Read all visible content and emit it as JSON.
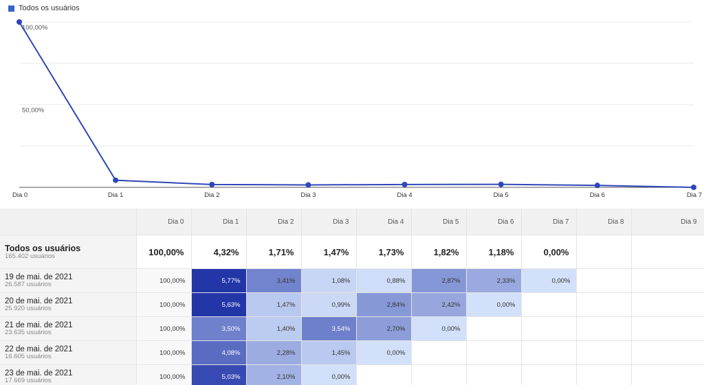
{
  "legend": {
    "label": "Todos os usuários",
    "color": "#3366cc"
  },
  "chart_data": {
    "type": "line",
    "x": [
      "Dia 0",
      "Dia 1",
      "Dia 2",
      "Dia 3",
      "Dia 4",
      "Dia 5",
      "Dia 6",
      "Dia 7"
    ],
    "series": [
      {
        "name": "Todos os usuários",
        "values": [
          100.0,
          4.32,
          1.71,
          1.47,
          1.73,
          1.82,
          1.18,
          0.0
        ]
      }
    ],
    "y_ticks": [
      "100,00%",
      "50,00%"
    ],
    "ylim": [
      0,
      100
    ],
    "grid": true,
    "line_color": "#2e46b8"
  },
  "table": {
    "columns": [
      "Dia 0",
      "Dia 1",
      "Dia 2",
      "Dia 3",
      "Dia 4",
      "Dia 5",
      "Dia 6",
      "Dia 7",
      "Dia 8",
      "Dia 9"
    ],
    "total": {
      "label": "Todos os usuários",
      "sublabel": "165.402 usuários",
      "values": [
        "100,00%",
        "4,32%",
        "1,71%",
        "1,47%",
        "1,73%",
        "1,82%",
        "1,18%",
        "0,00%",
        "",
        ""
      ]
    },
    "cohorts": [
      {
        "label": "19 de mai. de 2021",
        "sublabel": "26.587 usuários",
        "values": [
          "100,00%",
          "5,77%",
          "3,41%",
          "1,08%",
          "0,88%",
          "2,87%",
          "2,33%",
          "0,00%",
          "",
          ""
        ],
        "fractions": [
          1.0,
          0.0577,
          0.0341,
          0.0108,
          0.0088,
          0.0287,
          0.0233,
          0.0,
          null,
          null
        ]
      },
      {
        "label": "20 de mai. de 2021",
        "sublabel": "25.920 usuários",
        "values": [
          "100,00%",
          "5,63%",
          "1,47%",
          "0,99%",
          "2,84%",
          "2,42%",
          "0,00%",
          "",
          "",
          ""
        ],
        "fractions": [
          1.0,
          0.0563,
          0.0147,
          0.0099,
          0.0284,
          0.0242,
          0.0,
          null,
          null,
          null
        ]
      },
      {
        "label": "21 de mai. de 2021",
        "sublabel": "23.635 usuários",
        "values": [
          "100,00%",
          "3,50%",
          "1,40%",
          "3,54%",
          "2,70%",
          "0,00%",
          "",
          "",
          "",
          ""
        ],
        "fractions": [
          1.0,
          0.035,
          0.014,
          0.0354,
          0.027,
          0.0,
          null,
          null,
          null,
          null
        ]
      },
      {
        "label": "22 de mai. de 2021",
        "sublabel": "16.605 usuários",
        "values": [
          "100,00%",
          "4,08%",
          "2,28%",
          "1,45%",
          "0,00%",
          "",
          "",
          "",
          "",
          ""
        ],
        "fractions": [
          1.0,
          0.0408,
          0.0228,
          0.0145,
          0.0,
          null,
          null,
          null,
          null,
          null
        ]
      },
      {
        "label": "23 de mai. de 2021",
        "sublabel": "17.669 usuários",
        "values": [
          "100,00%",
          "5,03%",
          "2,10%",
          "0,00%",
          "",
          "",
          "",
          "",
          "",
          ""
        ],
        "fractions": [
          1.0,
          0.0503,
          0.021,
          0.0,
          null,
          null,
          null,
          null,
          null,
          null
        ]
      }
    ]
  }
}
